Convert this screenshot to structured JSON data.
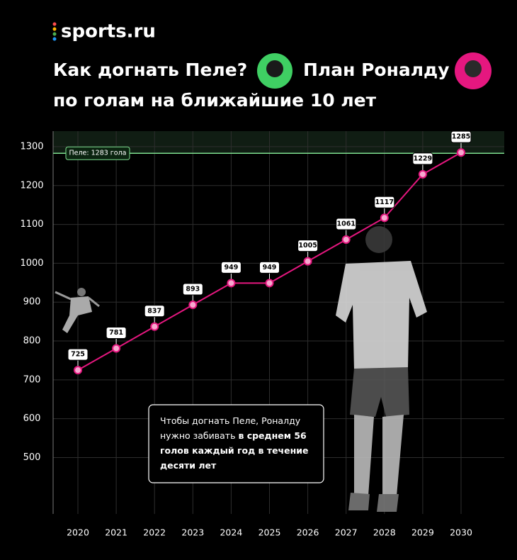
{
  "brand": "sports.ru",
  "chart_data": {
    "type": "line",
    "title_parts": [
      "Как догнать Пеле?",
      "План Роналду"
    ],
    "subtitle": "по голам на ближайшие 10 лет",
    "categories": [
      "2020",
      "2021",
      "2022",
      "2023",
      "2024",
      "2025",
      "2026",
      "2027",
      "2028",
      "2029",
      "2030"
    ],
    "values": [
      725,
      781,
      837,
      893,
      949,
      949,
      1005,
      1061,
      1117,
      1229,
      1285
    ],
    "color": "#e5177f",
    "ylim": [
      355,
      1340
    ],
    "yticks": [
      500,
      600,
      700,
      800,
      900,
      1000,
      1100,
      1200,
      1300
    ],
    "grid": true,
    "reference": {
      "value": 1283,
      "label": "Пеле: 1283 гола",
      "color": "#7ee08f"
    },
    "annotation": {
      "text": "Чтобы догнать Пеле, Роналду нужно забивать",
      "bold": "в среднем 56 голов каждый год в течение десяти лет"
    }
  }
}
